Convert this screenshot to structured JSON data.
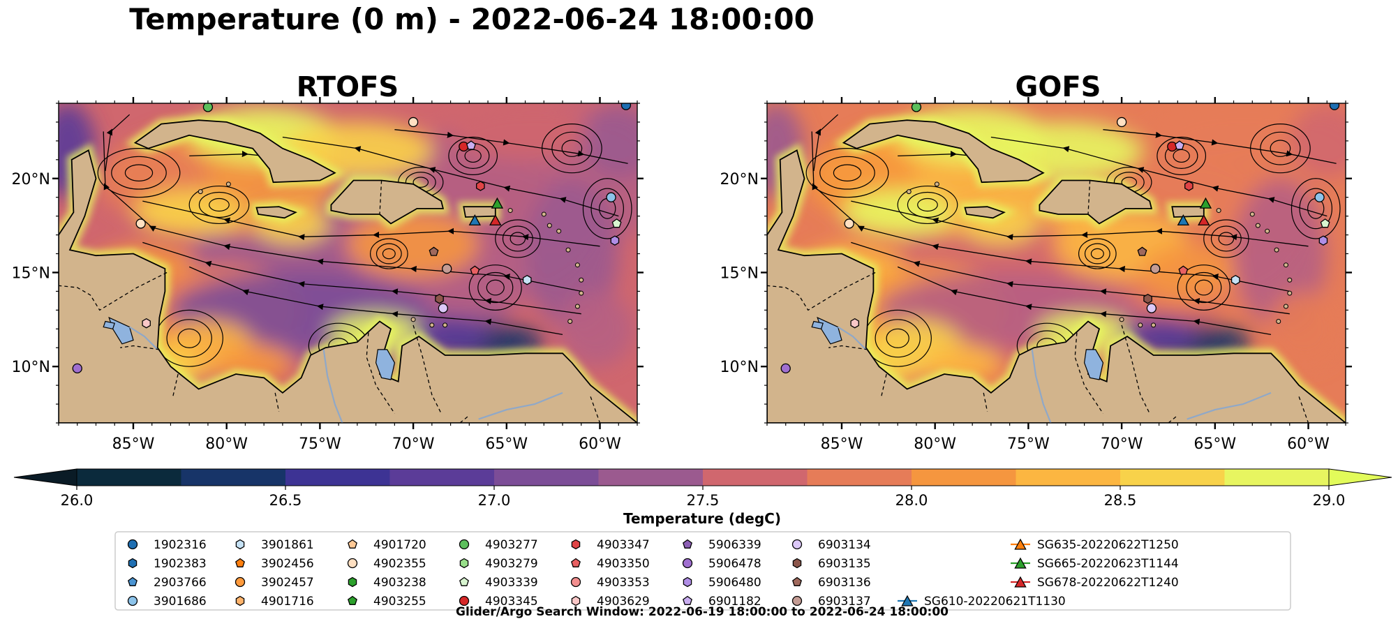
{
  "title": "Temperature (0 m) - 2022-06-24 18:00:00",
  "panels": [
    {
      "title": "RTOFS",
      "variant": 0
    },
    {
      "title": "GOFS",
      "variant": 1
    }
  ],
  "map": {
    "lon_range": [
      -89,
      -58
    ],
    "lat_range": [
      7,
      24
    ],
    "lon_ticks": [
      {
        "value": -85,
        "label": "85°W"
      },
      {
        "value": -80,
        "label": "80°W"
      },
      {
        "value": -75,
        "label": "75°W"
      },
      {
        "value": -70,
        "label": "70°W"
      },
      {
        "value": -65,
        "label": "65°W"
      },
      {
        "value": -60,
        "label": "60°W"
      }
    ],
    "lat_ticks": [
      {
        "value": 10,
        "label": "10°N"
      },
      {
        "value": 15,
        "label": "15°N"
      },
      {
        "value": 20,
        "label": "20°N"
      }
    ]
  },
  "colorbar": {
    "label": "Temperature (degC)",
    "min": 26.0,
    "max": 29.0,
    "step": 0.25,
    "extend": "both",
    "ticks": [
      {
        "value": 26.0,
        "label": "26.0"
      },
      {
        "value": 26.5,
        "label": "26.5"
      },
      {
        "value": 27.0,
        "label": "27.0"
      },
      {
        "value": 27.5,
        "label": "27.5"
      },
      {
        "value": 28.0,
        "label": "28.0"
      },
      {
        "value": 28.5,
        "label": "28.5"
      },
      {
        "value": 29.0,
        "label": "29.0"
      }
    ],
    "colors": [
      "#0b2a3c",
      "#173468",
      "#3d3394",
      "#5b3c98",
      "#7c4d97",
      "#9b5a8f",
      "#b65f83",
      "#d0676e",
      "#e67c58",
      "#f5963f",
      "#fcb641",
      "#f8d24a",
      "#e7f560"
    ],
    "under_color": "#0a1b26",
    "over_color": "#e2fb5a"
  },
  "legend": {
    "entries": [
      {
        "label": "1902316",
        "marker": "circle",
        "color": "#1f6fb2"
      },
      {
        "label": "1902383",
        "marker": "hexagon",
        "color": "#1f6fb2"
      },
      {
        "label": "2903766",
        "marker": "pentagon",
        "color": "#4a94d2"
      },
      {
        "label": "3901686",
        "marker": "circle",
        "color": "#8cc3ea"
      },
      {
        "label": "3901861",
        "marker": "hexagon",
        "color": "#c6e2f5"
      },
      {
        "label": "3902456",
        "marker": "pentagon",
        "color": "#ff7f0e"
      },
      {
        "label": "3902457",
        "marker": "circle",
        "color": "#ff9a3c"
      },
      {
        "label": "4901716",
        "marker": "hexagon",
        "color": "#ffb36b"
      },
      {
        "label": "4901720",
        "marker": "pentagon",
        "color": "#ffc996"
      },
      {
        "label": "4902355",
        "marker": "circle",
        "color": "#ffe0c2"
      },
      {
        "label": "4903238",
        "marker": "hexagon",
        "color": "#2ca02c"
      },
      {
        "label": "4903255",
        "marker": "pentagon",
        "color": "#2ca02c"
      },
      {
        "label": "4903277",
        "marker": "circle",
        "color": "#5cbf5c"
      },
      {
        "label": "4903279",
        "marker": "hexagon",
        "color": "#98df8a"
      },
      {
        "label": "4903339",
        "marker": "pentagon",
        "color": "#d8f5d0"
      },
      {
        "label": "4903345",
        "marker": "circle",
        "color": "#d62728"
      },
      {
        "label": "4903347",
        "marker": "hexagon",
        "color": "#e04446"
      },
      {
        "label": "4903350",
        "marker": "pentagon",
        "color": "#e86062"
      },
      {
        "label": "4903353",
        "marker": "circle",
        "color": "#f28e8e"
      },
      {
        "label": "4903629",
        "marker": "hexagon",
        "color": "#f9c7c7"
      },
      {
        "label": "5906339",
        "marker": "pentagon",
        "color": "#8c5fb5"
      },
      {
        "label": "5906478",
        "marker": "circle",
        "color": "#a06fd0"
      },
      {
        "label": "5906480",
        "marker": "hexagon",
        "color": "#b08ee6"
      },
      {
        "label": "6901182",
        "marker": "pentagon",
        "color": "#c9adf0"
      },
      {
        "label": "6903134",
        "marker": "circle",
        "color": "#dcc8f8"
      },
      {
        "label": "6903135",
        "marker": "hexagon",
        "color": "#8c564b"
      },
      {
        "label": "6903136",
        "marker": "pentagon",
        "color": "#a0695c"
      },
      {
        "label": "6903137",
        "marker": "circle",
        "color": "#c49c94"
      },
      {
        "label": "SG610-20220621T1130",
        "marker": "triangle",
        "color": "#1f77b4"
      },
      {
        "label": "SG635-20220622T1250",
        "marker": "triangle",
        "color": "#ff7f0e"
      },
      {
        "label": "SG665-20220623T1144",
        "marker": "triangle",
        "color": "#2ca02c"
      },
      {
        "label": "SG678-20220622T1240",
        "marker": "triangle",
        "color": "#d62728"
      }
    ]
  },
  "footer": "Glider/Argo Search Window: 2022-06-19 18:00:00 to 2022-06-24 18:00:00",
  "floats": [
    {
      "id": "4903277",
      "lon": -81.0,
      "lat": 23.8,
      "marker": "circle",
      "color": "#5cbf5c"
    },
    {
      "id": "4902355",
      "lon": -70.0,
      "lat": 23.0,
      "marker": "circle",
      "color": "#ffe0c2"
    },
    {
      "id": "1902316",
      "lon": -58.6,
      "lat": 23.9,
      "marker": "circle",
      "color": "#1f6fb2"
    },
    {
      "id": "4903345",
      "lon": -67.3,
      "lat": 21.7,
      "marker": "circle",
      "color": "#d62728"
    },
    {
      "id": "6901182",
      "lon": -66.9,
      "lat": 21.75,
      "marker": "pentagon",
      "color": "#c9adf0"
    },
    {
      "id": "4903347",
      "lon": -66.4,
      "lat": 19.6,
      "marker": "hexagon",
      "color": "#e04446"
    },
    {
      "id": "3901686",
      "lon": -59.4,
      "lat": 19.0,
      "marker": "circle",
      "color": "#8cc3ea"
    },
    {
      "id": "4903339",
      "lon": -59.1,
      "lat": 17.6,
      "marker": "pentagon",
      "color": "#d8f5d0"
    },
    {
      "id": "5906480",
      "lon": -59.2,
      "lat": 16.7,
      "marker": "hexagon",
      "color": "#b08ee6"
    },
    {
      "id": "4902355",
      "lon": -84.6,
      "lat": 17.6,
      "marker": "circle",
      "color": "#ffe0c2"
    },
    {
      "id": "6903136",
      "lon": -68.9,
      "lat": 16.1,
      "marker": "pentagon",
      "color": "#a0695c"
    },
    {
      "id": "6903137",
      "lon": -68.2,
      "lat": 15.2,
      "marker": "circle",
      "color": "#c49c94"
    },
    {
      "id": "4903350",
      "lon": -66.7,
      "lat": 15.1,
      "marker": "pentagon",
      "color": "#e86062"
    },
    {
      "id": "3901861",
      "lon": -63.9,
      "lat": 14.6,
      "marker": "hexagon",
      "color": "#c6e2f5"
    },
    {
      "id": "6903135",
      "lon": -68.6,
      "lat": 13.6,
      "marker": "hexagon",
      "color": "#8c564b"
    },
    {
      "id": "6903134",
      "lon": -68.4,
      "lat": 13.1,
      "marker": "circle",
      "color": "#dcc8f8"
    },
    {
      "id": "4903629",
      "lon": -84.3,
      "lat": 12.3,
      "marker": "hexagon",
      "color": "#f9c7c7"
    },
    {
      "id": "5906478",
      "lon": -88.0,
      "lat": 9.9,
      "marker": "circle",
      "color": "#a06fd0"
    },
    {
      "id": "SG665-20220623T1144",
      "lon": -65.5,
      "lat": 18.65,
      "marker": "triangle",
      "color": "#2ca02c"
    },
    {
      "id": "SG610-20220621T1130",
      "lon": -66.7,
      "lat": 17.75,
      "marker": "triangle",
      "color": "#1f77b4"
    },
    {
      "id": "SG678-20220622T1240",
      "lon": -65.6,
      "lat": 17.75,
      "marker": "triangle",
      "color": "#d62728"
    }
  ]
}
